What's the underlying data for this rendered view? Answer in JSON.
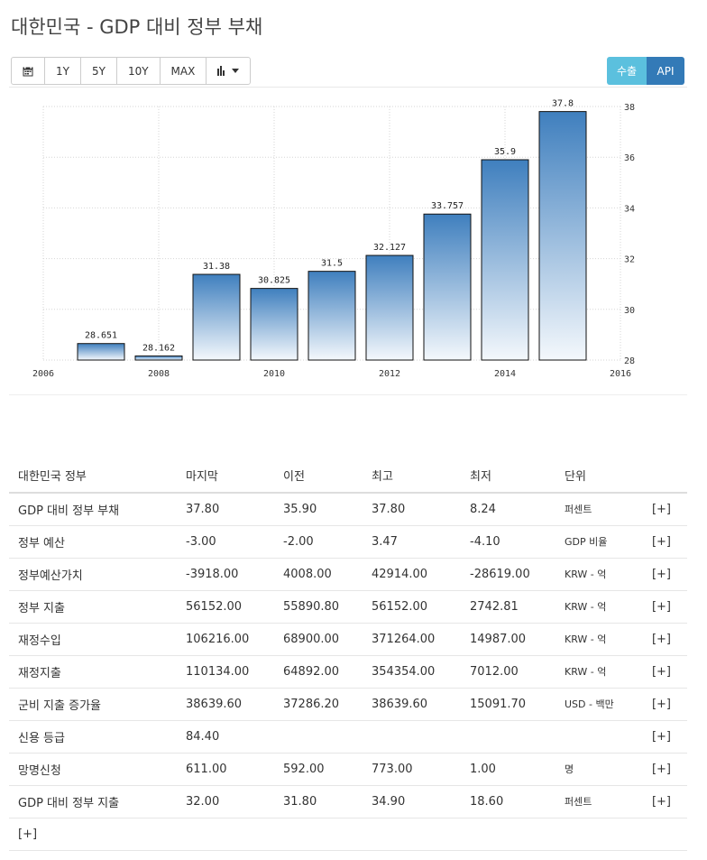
{
  "page": {
    "title": "대한민국 - GDP 대비 정부 부채"
  },
  "toolbar": {
    "calendar_icon": "calendar-icon",
    "ranges": [
      "1Y",
      "5Y",
      "10Y",
      "MAX"
    ],
    "chart_type_icon": "bar-chart-icon"
  },
  "actions": {
    "export_label": "수출",
    "api_label": "API",
    "export_color": "#5bc0de",
    "api_color": "#337ab7"
  },
  "chart_data": {
    "type": "bar",
    "x": [
      2007,
      2008,
      2009,
      2010,
      2011,
      2012,
      2013,
      2014,
      2015
    ],
    "values": [
      28.651,
      28.162,
      31.38,
      30.825,
      31.5,
      32.127,
      33.757,
      35.9,
      37.8
    ],
    "value_labels": [
      "28.651",
      "28.162",
      "31.38",
      "30.825",
      "31.5",
      "32.127",
      "33.757",
      "35.9",
      "37.8"
    ],
    "xlim": [
      2006,
      2016
    ],
    "ylim": [
      28,
      38
    ],
    "x_ticks": [
      "2006",
      "2008",
      "2010",
      "2012",
      "2014",
      "2016"
    ],
    "y_ticks": [
      "28",
      "30",
      "32",
      "34",
      "36",
      "38"
    ],
    "y_axis_side": "right",
    "grid": true,
    "bar_color_top": "#3f7fbe",
    "bar_color_bottom": "#f4f8fc",
    "title": "",
    "xlabel": "",
    "ylabel": ""
  },
  "table": {
    "headers": [
      "대한민국 정부",
      "마지막",
      "이전",
      "최고",
      "최저",
      "단위",
      ""
    ],
    "rows": [
      [
        "GDP 대비 정부 부채",
        "37.80",
        "35.90",
        "37.80",
        "8.24",
        "퍼센트",
        "[+]"
      ],
      [
        "정부 예산",
        "-3.00",
        "-2.00",
        "3.47",
        "-4.10",
        "GDP 비율",
        "[+]"
      ],
      [
        "정부예산가치",
        "-3918.00",
        "4008.00",
        "42914.00",
        "-28619.00",
        "KRW - 억",
        "[+]"
      ],
      [
        "정부 지출",
        "56152.00",
        "55890.80",
        "56152.00",
        "2742.81",
        "KRW - 억",
        "[+]"
      ],
      [
        "재정수입",
        "106216.00",
        "68900.00",
        "371264.00",
        "14987.00",
        "KRW - 억",
        "[+]"
      ],
      [
        "재정지출",
        "110134.00",
        "64892.00",
        "354354.00",
        "7012.00",
        "KRW - 억",
        "[+]"
      ],
      [
        "군비 지출 증가율",
        "38639.60",
        "37286.20",
        "38639.60",
        "15091.70",
        "USD - 백만",
        "[+]"
      ],
      [
        "신용 등급",
        "84.40",
        "",
        "",
        "",
        "",
        "[+]"
      ],
      [
        "망명신청",
        "611.00",
        "592.00",
        "773.00",
        "1.00",
        "명",
        "[+]"
      ],
      [
        "GDP 대비 정부 지출",
        "32.00",
        "31.80",
        "34.90",
        "18.60",
        "퍼센트",
        "[+]"
      ]
    ],
    "footer_more": "[+]"
  }
}
